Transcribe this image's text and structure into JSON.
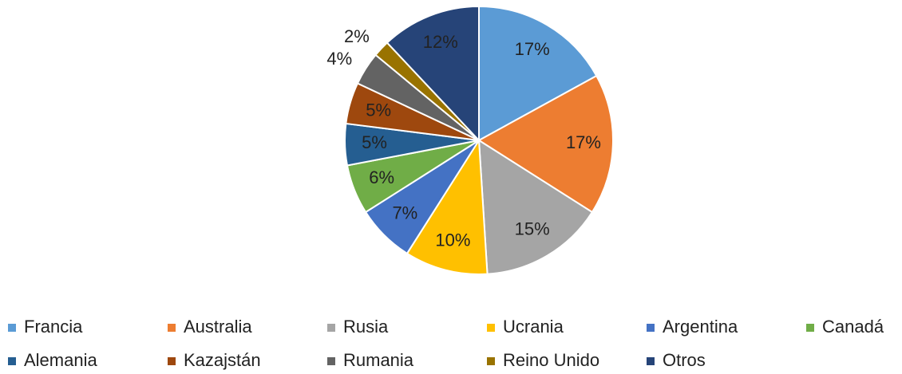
{
  "chart_data": {
    "type": "pie",
    "categories": [
      "Francia",
      "Australia",
      "Rusia",
      "Ucrania",
      "Argentina",
      "Canadá",
      "Alemania",
      "Kazajstán",
      "Rumania",
      "Reino Unido",
      "Otros"
    ],
    "values": [
      17,
      17,
      15,
      10,
      7,
      6,
      5,
      5,
      4,
      2,
      12
    ],
    "value_labels": [
      "17%",
      "17%",
      "15%",
      "10%",
      "7%",
      "6%",
      "5%",
      "5%",
      "4%",
      "2%",
      "12%"
    ],
    "colors": [
      "#5b9bd5",
      "#ed7d31",
      "#a5a5a5",
      "#ffc000",
      "#4472c4",
      "#70ad47",
      "#255e91",
      "#9e480e",
      "#636363",
      "#997300",
      "#264478"
    ],
    "legend": "bottom"
  }
}
